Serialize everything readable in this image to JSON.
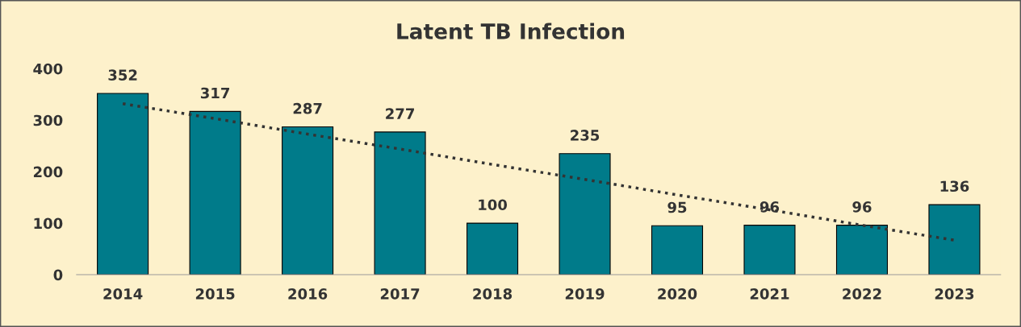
{
  "chart_data": {
    "type": "bar",
    "title": "Latent TB Infection",
    "categories": [
      "2014",
      "2015",
      "2016",
      "2017",
      "2018",
      "2019",
      "2020",
      "2021",
      "2022",
      "2023"
    ],
    "series": [
      {
        "color": "#007b8a",
        "values": [
          352,
          317,
          287,
          277,
          100,
          235,
          95,
          96,
          96,
          136
        ],
        "value_labels": [
          "352",
          "317",
          "287",
          "277",
          "100",
          "235",
          "95",
          "96",
          "96",
          "136"
        ]
      },
      {
        "type": "line",
        "color": "#333333",
        "values": [
          332,
          303,
          273,
          244,
          214,
          185,
          155,
          126,
          96,
          67
        ],
        "line_style": "dotted"
      }
    ],
    "ylim": [
      0,
      400
    ],
    "yticks": [
      0,
      100,
      200,
      300,
      400
    ],
    "grid": false,
    "legend": false
  }
}
